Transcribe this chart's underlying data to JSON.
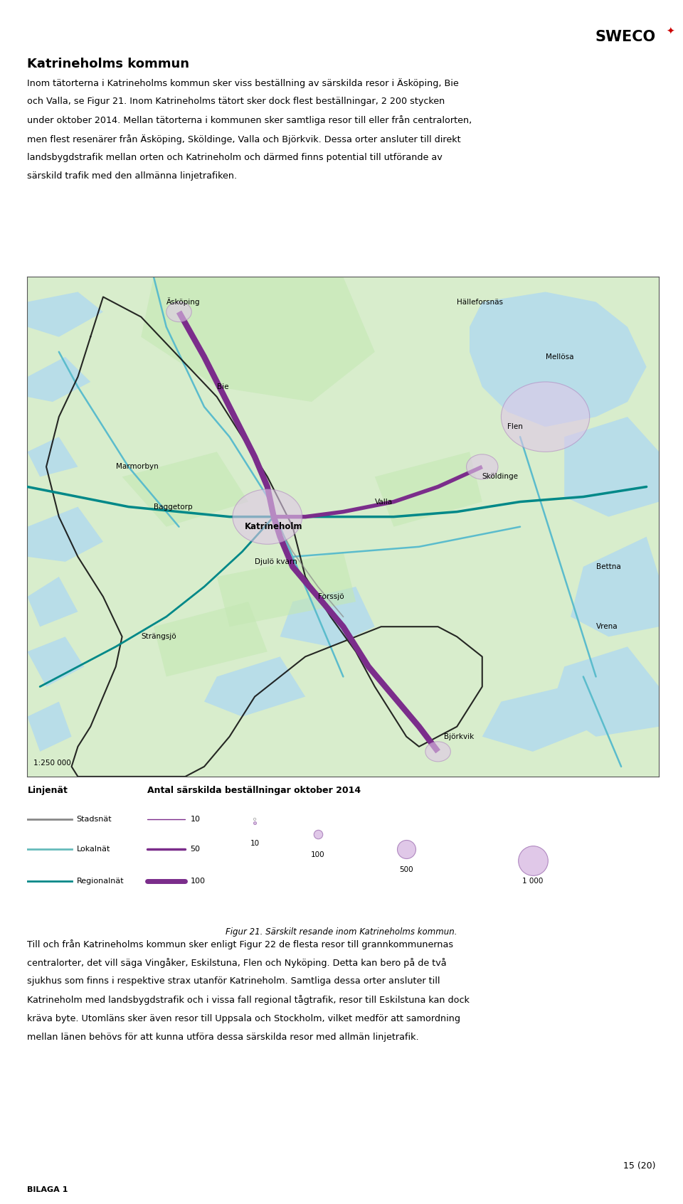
{
  "title": "Katrineholms kommun",
  "para1_lines": [
    "Inom tätorterna i Katrineholms kommun sker viss beställning av särskilda resor i Äsköping, Bie",
    "och Valla, se Figur 21. Inom Katrineholms tätort sker dock flest beställningar, 2 200 stycken",
    "under oktober 2014. Mellan tätorterna i kommunen sker samtliga resor till eller från centralorten,",
    "men flest resenärer från Äsköping, Sköldinge, Valla och Björkvik. Dessa orter ansluter till direkt",
    "landsbygdstrafik mellan orten och Katrineholm och därmed finns potential till utförande av",
    "särskild trafik med den allmänna linjetrafiken."
  ],
  "caption": "Figur 21. Särskilt resande inom Katrineholms kommun.",
  "para2_lines": [
    "Till och från Katrineholms kommun sker enligt Figur 22 de flesta resor till grannkommunernas",
    "centralorter, det vill säga Vingåker, Eskilstuna, Flen och Nyköping. Detta kan bero på de två",
    "sjukhus som finns i respektive strax utanför Katrineholm. Samtliga dessa orter ansluter till",
    "Katrineholm med landsbygdstrafik och i vissa fall regional tågtrafik, resor till Eskilstuna kan dock",
    "kräva byte. Utomläns sker även resor till Uppsala och Stockholm, vilket medför att samordning",
    "mellan länen behövs för att kunna utföra dessa särskilda resor med allmän linjetrafik."
  ],
  "scale": "1:250 000",
  "page_num": "15 (20)",
  "footer_label": "BILAGA 1",
  "legend_net_title": "Linjenät",
  "legend_count_title": "Antal särskilda beställningar oktober 2014",
  "legend_net_labels": [
    "Stadsnät",
    "Lokalnät",
    "Regionalnät"
  ],
  "legend_net_colors": [
    "#888888",
    "#55aaaa",
    "#008888"
  ],
  "bg_color": "#ffffff",
  "map_land_color": "#d8edcc",
  "map_water_color": "#b8dde8",
  "map_river_color": "#5bbccc",
  "map_border_color": "#222222",
  "purple_color": "#7b2d8b",
  "teal_color": "#008888",
  "circle_face": "#e0c8e8",
  "circle_edge": "#b088c0"
}
